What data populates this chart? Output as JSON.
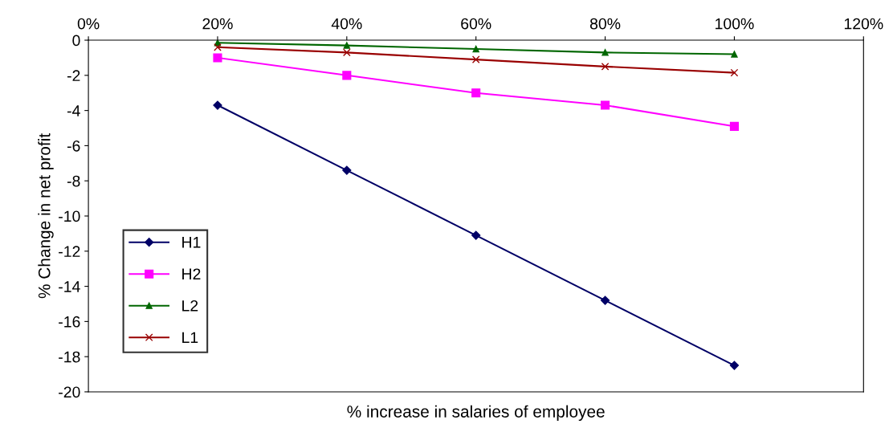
{
  "chart_data": {
    "type": "line",
    "xlabel": "% increase in salaries of employee",
    "ylabel": "% Change in net profit",
    "x": [
      20,
      40,
      60,
      80,
      100
    ],
    "series": [
      {
        "name": "H1",
        "color": "#000066",
        "marker": "diamond",
        "values": [
          -3.7,
          -7.4,
          -11.1,
          -14.8,
          -18.5
        ]
      },
      {
        "name": "H2",
        "color": "#ff00ff",
        "marker": "square",
        "values": [
          -1.0,
          -2.0,
          -3.0,
          -3.7,
          -4.9
        ]
      },
      {
        "name": "L2",
        "color": "#006600",
        "marker": "triangle",
        "values": [
          -0.15,
          -0.3,
          -0.5,
          -0.7,
          -0.8
        ]
      },
      {
        "name": "L1",
        "color": "#990000",
        "marker": "cross",
        "values": [
          -0.4,
          -0.7,
          -1.1,
          -1.5,
          -1.85
        ]
      }
    ],
    "xlim": [
      0,
      120
    ],
    "xticks": [
      {
        "value": 0,
        "label": "0%"
      },
      {
        "value": 20,
        "label": "20%"
      },
      {
        "value": 40,
        "label": "40%"
      },
      {
        "value": 60,
        "label": "60%"
      },
      {
        "value": 80,
        "label": "80%"
      },
      {
        "value": 100,
        "label": "100%"
      },
      {
        "value": 120,
        "label": "120%"
      }
    ],
    "ylim": [
      -20,
      0
    ],
    "yticks": [
      0,
      -2,
      -4,
      -6,
      -8,
      -10,
      -12,
      -14,
      -16,
      -18,
      -20
    ],
    "grid": false,
    "legend": "bottom left",
    "line_style": "solid"
  }
}
